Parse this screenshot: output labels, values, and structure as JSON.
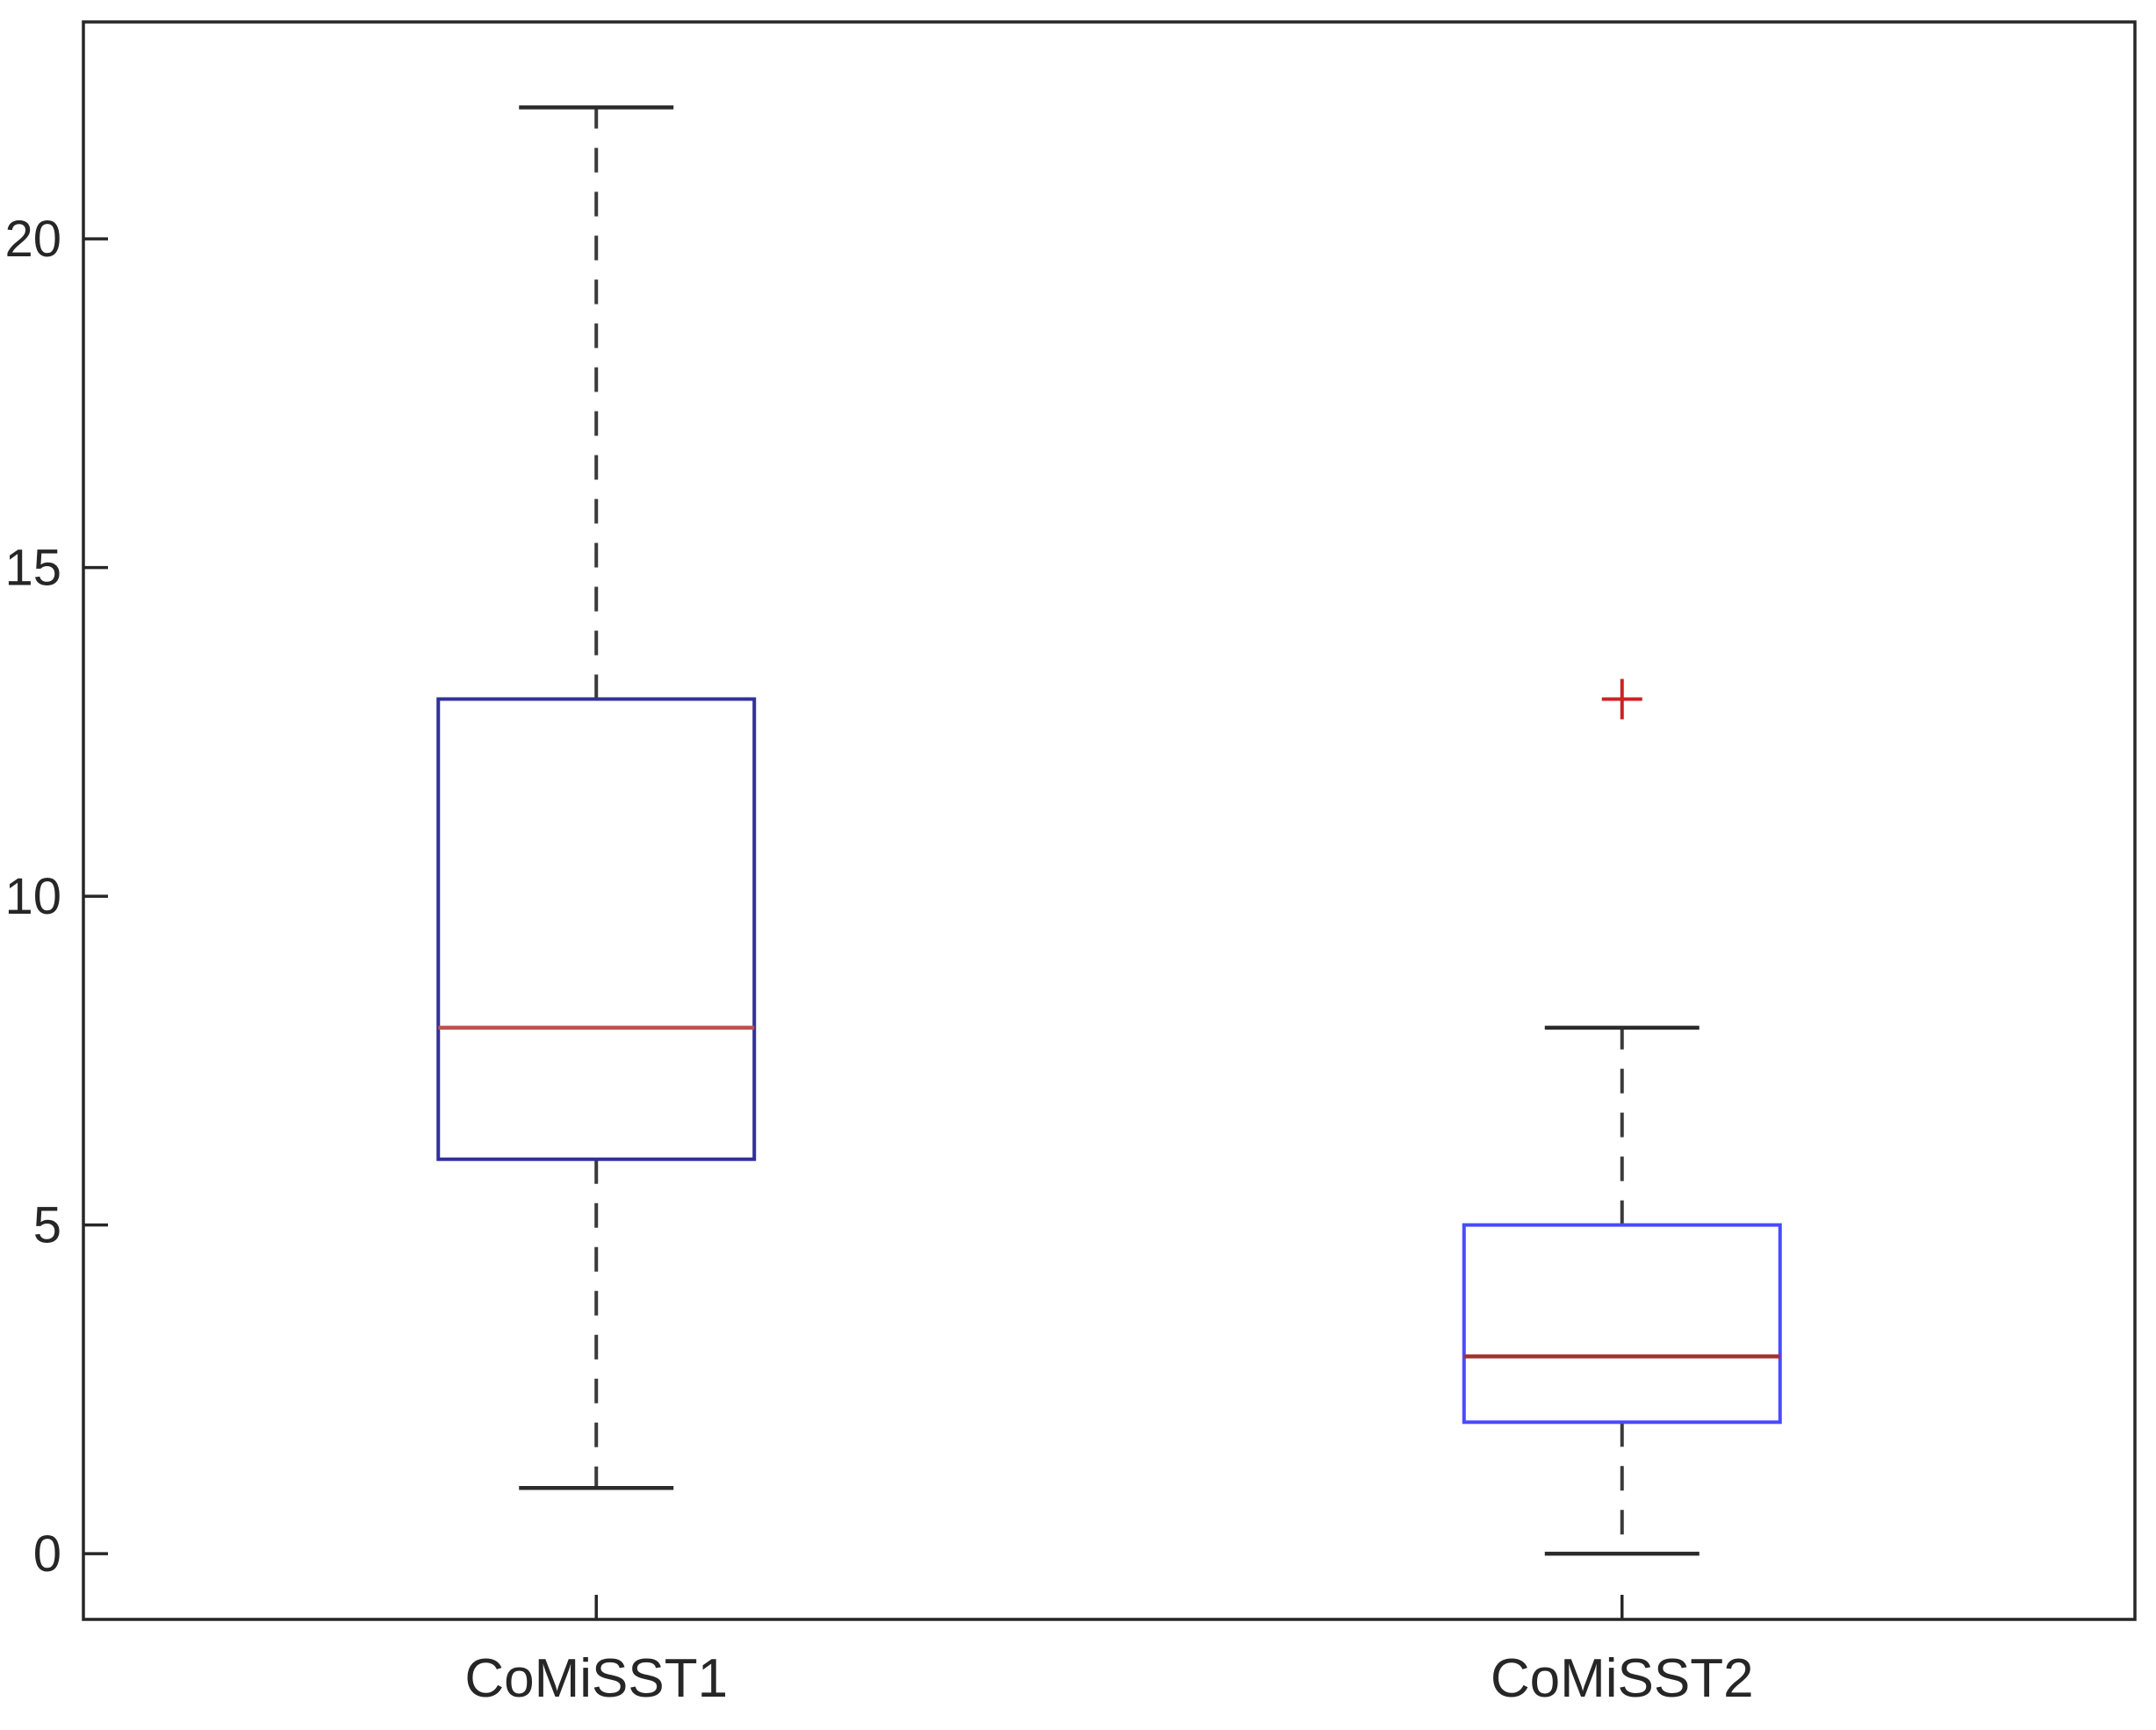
{
  "figure": {
    "background": "#ffffff",
    "axis_color": "#262626",
    "tick_label_color": "#262626"
  },
  "chart_data": {
    "type": "boxplot",
    "title": "",
    "xlabel": "",
    "ylabel": "",
    "grid": false,
    "legend": null,
    "categories": [
      "CoMiSST1",
      "CoMiSST2"
    ],
    "yticks": [
      0,
      5,
      10,
      15,
      20
    ],
    "ylim": [
      -1,
      23.3
    ],
    "outlier_marker": "+",
    "outlier_color": "#cc2222",
    "series": [
      {
        "name": "CoMiSST1",
        "whisker_low": 1,
        "q1": 6,
        "median": 8,
        "q3": 13,
        "whisker_high": 22,
        "outliers": [],
        "box_color": "#30309c",
        "median_color": "#c0504d",
        "whisker_color": "#3a3a3a",
        "cap_color": "#2a2a2a"
      },
      {
        "name": "CoMiSST2",
        "whisker_low": 0,
        "q1": 2,
        "median": 3,
        "q3": 5,
        "whisker_high": 8,
        "outliers": [
          13
        ],
        "box_color": "#4a4aff",
        "median_color": "#a03232",
        "whisker_color": "#3a3a3a",
        "cap_color": "#2a2a2a"
      }
    ]
  }
}
